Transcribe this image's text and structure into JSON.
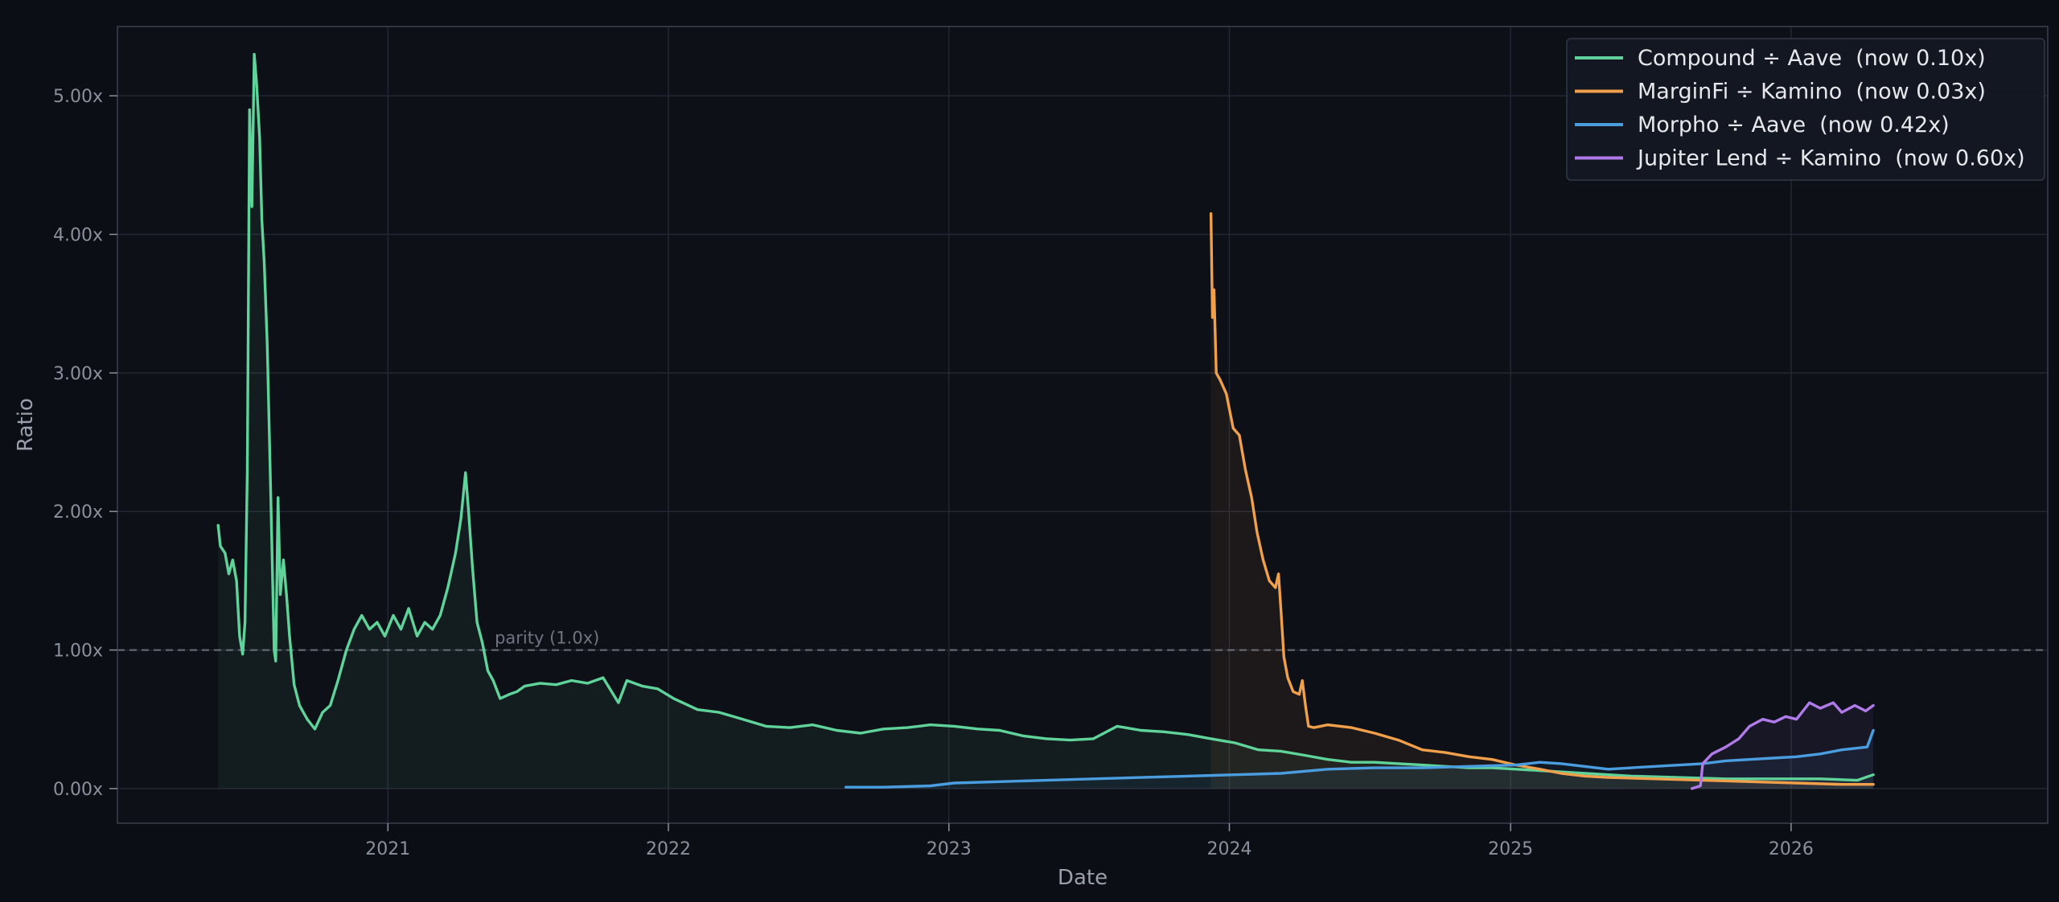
{
  "chart_data": {
    "type": "line",
    "title": "",
    "xlabel": "Date",
    "ylabel": "Ratio",
    "xlim": [
      "2020-01-15",
      "2026-12-01"
    ],
    "ylim": [
      -0.25,
      5.5
    ],
    "x_ticks": [
      "2021-01-01",
      "2022-01-01",
      "2023-01-01",
      "2024-01-01",
      "2025-01-01",
      "2026-01-01"
    ],
    "x_tick_labels": [
      "2021",
      "2022",
      "2023",
      "2024",
      "2025",
      "2026"
    ],
    "y_ticks": [
      0,
      1,
      2,
      3,
      4,
      5
    ],
    "y_tick_labels": [
      "0.00x",
      "1.00x",
      "2.00x",
      "3.00x",
      "4.00x",
      "5.00x"
    ],
    "grid": true,
    "legend_position": "top-right",
    "reference_line": {
      "y": 1.0,
      "label": "parity (1.0x)"
    },
    "colors": {
      "background": "#0b0e14",
      "plot_background": "#0d1017",
      "grid": "#232733",
      "spine": "#2f3440",
      "reference": "#6a6f7a"
    },
    "series": [
      {
        "name": "Compound ÷ Aave  (now 0.10x)",
        "color": "#5fd39a",
        "fill": true,
        "points": [
          [
            "2020-05-25",
            1.9
          ],
          [
            "2020-05-28",
            1.75
          ],
          [
            "2020-06-03",
            1.7
          ],
          [
            "2020-06-08",
            1.55
          ],
          [
            "2020-06-13",
            1.65
          ],
          [
            "2020-06-18",
            1.5
          ],
          [
            "2020-06-22",
            1.1
          ],
          [
            "2020-06-26",
            0.97
          ],
          [
            "2020-06-29",
            1.2
          ],
          [
            "2020-07-02",
            2.3
          ],
          [
            "2020-07-05",
            4.9
          ],
          [
            "2020-07-08",
            4.2
          ],
          [
            "2020-07-11",
            5.3
          ],
          [
            "2020-07-14",
            5.1
          ],
          [
            "2020-07-18",
            4.7
          ],
          [
            "2020-07-21",
            4.1
          ],
          [
            "2020-07-24",
            3.8
          ],
          [
            "2020-07-28",
            3.2
          ],
          [
            "2020-08-02",
            2.0
          ],
          [
            "2020-08-06",
            1.0
          ],
          [
            "2020-08-08",
            0.92
          ],
          [
            "2020-08-11",
            2.1
          ],
          [
            "2020-08-14",
            1.4
          ],
          [
            "2020-08-18",
            1.65
          ],
          [
            "2020-08-22",
            1.4
          ],
          [
            "2020-08-26",
            1.1
          ],
          [
            "2020-09-01",
            0.75
          ],
          [
            "2020-09-08",
            0.6
          ],
          [
            "2020-09-18",
            0.5
          ],
          [
            "2020-09-28",
            0.43
          ],
          [
            "2020-10-08",
            0.55
          ],
          [
            "2020-10-18",
            0.6
          ],
          [
            "2020-10-28",
            0.78
          ],
          [
            "2020-11-08",
            1.0
          ],
          [
            "2020-11-18",
            1.15
          ],
          [
            "2020-11-28",
            1.25
          ],
          [
            "2020-12-08",
            1.15
          ],
          [
            "2020-12-18",
            1.2
          ],
          [
            "2020-12-28",
            1.1
          ],
          [
            "2021-01-08",
            1.25
          ],
          [
            "2021-01-18",
            1.15
          ],
          [
            "2021-01-28",
            1.3
          ],
          [
            "2021-02-08",
            1.1
          ],
          [
            "2021-02-18",
            1.2
          ],
          [
            "2021-02-28",
            1.15
          ],
          [
            "2021-03-10",
            1.25
          ],
          [
            "2021-03-20",
            1.45
          ],
          [
            "2021-03-30",
            1.7
          ],
          [
            "2021-04-06",
            1.95
          ],
          [
            "2021-04-12",
            2.28
          ],
          [
            "2021-04-16",
            2.0
          ],
          [
            "2021-04-21",
            1.6
          ],
          [
            "2021-04-27",
            1.2
          ],
          [
            "2021-05-04",
            1.05
          ],
          [
            "2021-05-11",
            0.85
          ],
          [
            "2021-05-18",
            0.78
          ],
          [
            "2021-05-27",
            0.65
          ],
          [
            "2021-06-08",
            0.68
          ],
          [
            "2021-06-18",
            0.7
          ],
          [
            "2021-06-28",
            0.74
          ],
          [
            "2021-07-18",
            0.76
          ],
          [
            "2021-08-08",
            0.75
          ],
          [
            "2021-08-28",
            0.78
          ],
          [
            "2021-09-18",
            0.76
          ],
          [
            "2021-10-08",
            0.8
          ],
          [
            "2021-10-28",
            0.62
          ],
          [
            "2021-11-08",
            0.78
          ],
          [
            "2021-11-28",
            0.74
          ],
          [
            "2021-12-18",
            0.72
          ],
          [
            "2022-01-08",
            0.65
          ],
          [
            "2022-02-08",
            0.57
          ],
          [
            "2022-03-08",
            0.55
          ],
          [
            "2022-04-08",
            0.5
          ],
          [
            "2022-05-08",
            0.45
          ],
          [
            "2022-06-08",
            0.44
          ],
          [
            "2022-07-08",
            0.46
          ],
          [
            "2022-08-08",
            0.42
          ],
          [
            "2022-09-08",
            0.4
          ],
          [
            "2022-10-08",
            0.43
          ],
          [
            "2022-11-08",
            0.44
          ],
          [
            "2022-12-08",
            0.46
          ],
          [
            "2023-01-08",
            0.45
          ],
          [
            "2023-02-08",
            0.43
          ],
          [
            "2023-03-08",
            0.42
          ],
          [
            "2023-04-08",
            0.38
          ],
          [
            "2023-05-08",
            0.36
          ],
          [
            "2023-06-08",
            0.35
          ],
          [
            "2023-07-08",
            0.36
          ],
          [
            "2023-08-08",
            0.45
          ],
          [
            "2023-09-08",
            0.42
          ],
          [
            "2023-10-08",
            0.41
          ],
          [
            "2023-11-08",
            0.39
          ],
          [
            "2023-12-08",
            0.36
          ],
          [
            "2024-01-08",
            0.33
          ],
          [
            "2024-02-08",
            0.28
          ],
          [
            "2024-03-08",
            0.27
          ],
          [
            "2024-04-08",
            0.24
          ],
          [
            "2024-05-08",
            0.21
          ],
          [
            "2024-06-08",
            0.19
          ],
          [
            "2024-07-08",
            0.19
          ],
          [
            "2024-08-08",
            0.18
          ],
          [
            "2024-09-08",
            0.17
          ],
          [
            "2024-10-08",
            0.16
          ],
          [
            "2024-11-08",
            0.15
          ],
          [
            "2024-12-08",
            0.15
          ],
          [
            "2025-01-08",
            0.14
          ],
          [
            "2025-02-08",
            0.13
          ],
          [
            "2025-04-08",
            0.11
          ],
          [
            "2025-06-08",
            0.09
          ],
          [
            "2025-08-08",
            0.08
          ],
          [
            "2025-10-08",
            0.07
          ],
          [
            "2025-12-08",
            0.07
          ],
          [
            "2026-02-08",
            0.07
          ],
          [
            "2026-03-28",
            0.06
          ],
          [
            "2026-04-18",
            0.1
          ]
        ]
      },
      {
        "name": "MarginFi ÷ Kamino  (now 0.03x)",
        "color": "#f0a04a",
        "fill": true,
        "points": [
          [
            "2023-12-08",
            4.15
          ],
          [
            "2023-12-10",
            3.4
          ],
          [
            "2023-12-12",
            3.6
          ],
          [
            "2023-12-15",
            3.0
          ],
          [
            "2023-12-20",
            2.95
          ],
          [
            "2023-12-28",
            2.85
          ],
          [
            "2024-01-06",
            2.6
          ],
          [
            "2024-01-14",
            2.55
          ],
          [
            "2024-01-22",
            2.3
          ],
          [
            "2024-01-30",
            2.1
          ],
          [
            "2024-02-06",
            1.85
          ],
          [
            "2024-02-14",
            1.65
          ],
          [
            "2024-02-22",
            1.5
          ],
          [
            "2024-03-01",
            1.45
          ],
          [
            "2024-03-05",
            1.55
          ],
          [
            "2024-03-08",
            1.3
          ],
          [
            "2024-03-12",
            0.95
          ],
          [
            "2024-03-17",
            0.8
          ],
          [
            "2024-03-24",
            0.7
          ],
          [
            "2024-04-01",
            0.68
          ],
          [
            "2024-04-05",
            0.78
          ],
          [
            "2024-04-09",
            0.6
          ],
          [
            "2024-04-13",
            0.45
          ],
          [
            "2024-04-20",
            0.44
          ],
          [
            "2024-05-08",
            0.46
          ],
          [
            "2024-06-08",
            0.44
          ],
          [
            "2024-07-08",
            0.4
          ],
          [
            "2024-08-08",
            0.35
          ],
          [
            "2024-09-08",
            0.28
          ],
          [
            "2024-10-08",
            0.26
          ],
          [
            "2024-11-08",
            0.23
          ],
          [
            "2024-12-08",
            0.21
          ],
          [
            "2025-01-08",
            0.17
          ],
          [
            "2025-02-08",
            0.14
          ],
          [
            "2025-03-08",
            0.11
          ],
          [
            "2025-04-08",
            0.09
          ],
          [
            "2025-05-08",
            0.08
          ],
          [
            "2025-07-08",
            0.07
          ],
          [
            "2025-09-08",
            0.06
          ],
          [
            "2025-11-08",
            0.05
          ],
          [
            "2026-01-08",
            0.04
          ],
          [
            "2026-03-08",
            0.03
          ],
          [
            "2026-04-18",
            0.03
          ]
        ]
      },
      {
        "name": "Morpho ÷ Aave  (now 0.42x)",
        "color": "#4a9ee0",
        "fill": true,
        "points": [
          [
            "2022-08-20",
            0.01
          ],
          [
            "2022-10-08",
            0.01
          ],
          [
            "2022-12-08",
            0.02
          ],
          [
            "2023-01-08",
            0.04
          ],
          [
            "2023-03-08",
            0.05
          ],
          [
            "2023-05-08",
            0.06
          ],
          [
            "2023-07-08",
            0.07
          ],
          [
            "2023-09-08",
            0.08
          ],
          [
            "2023-11-08",
            0.09
          ],
          [
            "2024-01-08",
            0.1
          ],
          [
            "2024-03-08",
            0.11
          ],
          [
            "2024-05-08",
            0.14
          ],
          [
            "2024-07-08",
            0.15
          ],
          [
            "2024-09-08",
            0.15
          ],
          [
            "2024-11-08",
            0.16
          ],
          [
            "2025-01-08",
            0.17
          ],
          [
            "2025-02-08",
            0.19
          ],
          [
            "2025-03-08",
            0.18
          ],
          [
            "2025-05-08",
            0.14
          ],
          [
            "2025-07-08",
            0.16
          ],
          [
            "2025-09-08",
            0.18
          ],
          [
            "2025-10-08",
            0.2
          ],
          [
            "2025-11-08",
            0.21
          ],
          [
            "2025-12-08",
            0.22
          ],
          [
            "2026-01-08",
            0.23
          ],
          [
            "2026-02-08",
            0.25
          ],
          [
            "2026-03-08",
            0.28
          ],
          [
            "2026-04-10",
            0.3
          ],
          [
            "2026-04-18",
            0.42
          ]
        ]
      },
      {
        "name": "Jupiter Lend ÷ Kamino  (now 0.60x)",
        "color": "#b07ae8",
        "fill": true,
        "points": [
          [
            "2025-08-25",
            0.0
          ],
          [
            "2025-09-05",
            0.02
          ],
          [
            "2025-09-08",
            0.18
          ],
          [
            "2025-09-20",
            0.25
          ],
          [
            "2025-10-08",
            0.3
          ],
          [
            "2025-10-25",
            0.36
          ],
          [
            "2025-11-08",
            0.45
          ],
          [
            "2025-11-25",
            0.5
          ],
          [
            "2025-12-10",
            0.48
          ],
          [
            "2025-12-25",
            0.52
          ],
          [
            "2026-01-08",
            0.5
          ],
          [
            "2026-01-25",
            0.62
          ],
          [
            "2026-02-08",
            0.58
          ],
          [
            "2026-02-25",
            0.62
          ],
          [
            "2026-03-08",
            0.55
          ],
          [
            "2026-03-25",
            0.6
          ],
          [
            "2026-04-08",
            0.56
          ],
          [
            "2026-04-18",
            0.6
          ]
        ]
      }
    ]
  }
}
